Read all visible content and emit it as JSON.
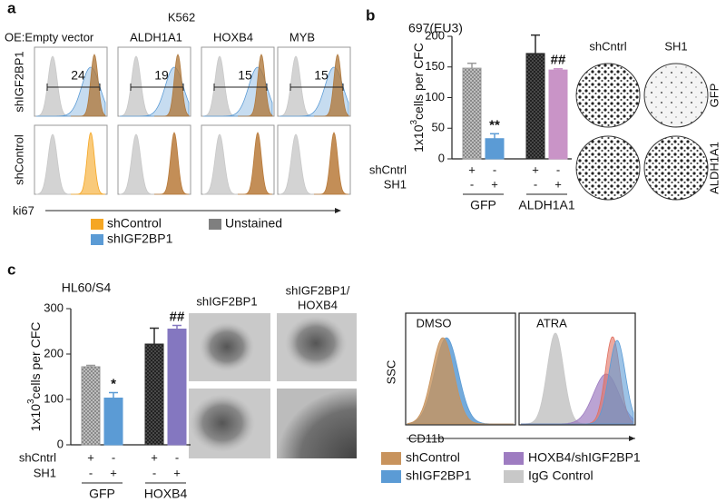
{
  "panel_a": {
    "label": "a",
    "cell_line": "K562",
    "columns": [
      "OE:Empty vector",
      "ALDH1A1",
      "HOXB4",
      "MYB"
    ],
    "rows": [
      "shIGF2BP1",
      "shControl"
    ],
    "percentages": [
      24,
      19,
      15,
      15
    ],
    "x_axis": "ki67",
    "legend": [
      {
        "name": "shControl",
        "color": "#f5a623"
      },
      {
        "name": "shIGF2BP1",
        "color": "#5b9bd5"
      },
      {
        "name": "Unstained",
        "color": "#7f7f7f"
      }
    ]
  },
  "chart_data": [
    {
      "type": "bar",
      "panel": "b",
      "title": "697(EU3)",
      "ylabel_parts": [
        "1x10",
        "3",
        "cells per CFC"
      ],
      "categories": [
        null,
        null,
        null,
        null
      ],
      "series": [
        {
          "values": [
            148,
            33,
            172,
            145
          ],
          "errors": [
            8,
            8,
            30,
            2
          ],
          "colors": [
            "#9a9a9a",
            "#5b9bd5",
            "#2b2b2b",
            "#c994c7"
          ],
          "patterned": [
            true,
            false,
            true,
            false
          ]
        }
      ],
      "annotations": [
        null,
        "**",
        null,
        "##"
      ],
      "rows": [
        {
          "name": "shCntrl",
          "marks": [
            "+",
            "-",
            "+",
            "-"
          ]
        },
        {
          "name": "SH1",
          "marks": [
            "-",
            "+",
            "-",
            "+"
          ]
        }
      ],
      "groups": [
        "GFP",
        "ALDH1A1"
      ],
      "ylim": [
        0,
        200
      ],
      "yticks": [
        0,
        50,
        100,
        150,
        200
      ]
    },
    {
      "type": "bar",
      "panel": "c",
      "title": "HL60/S4",
      "ylabel_parts": [
        "1x10",
        "3",
        "cells per CFC"
      ],
      "categories": [
        null,
        null,
        null,
        null
      ],
      "series": [
        {
          "values": [
            172,
            103,
            222,
            255
          ],
          "errors": [
            3,
            12,
            35,
            8
          ],
          "colors": [
            "#9a9a9a",
            "#5b9bd5",
            "#2b2b2b",
            "#8477c0"
          ],
          "patterned": [
            true,
            false,
            true,
            false
          ]
        }
      ],
      "annotations": [
        null,
        "*",
        null,
        "##"
      ],
      "rows": [
        {
          "name": "shCntrl",
          "marks": [
            "+",
            "-",
            "+",
            "-"
          ]
        },
        {
          "name": "SH1",
          "marks": [
            "-",
            "+",
            "-",
            "+"
          ]
        }
      ],
      "groups": [
        "GFP",
        "HOXB4"
      ],
      "ylim": [
        0,
        300
      ],
      "yticks": [
        0,
        100,
        200,
        300
      ]
    }
  ],
  "colonies": {
    "columns": [
      "shCntrl",
      "SH1"
    ],
    "rows": [
      "GFP",
      "ALDH1A1"
    ]
  },
  "images": {
    "left": "shIGF2BP1",
    "right": [
      "shIGF2BP1/",
      "HOXB4"
    ]
  },
  "flow": {
    "conditions": [
      "DMSO",
      "ATRA"
    ],
    "y_axis": "SSC",
    "x_axis": "CD11b",
    "legend": [
      {
        "name": "shControl",
        "color": "#c8935d"
      },
      {
        "name": "shIGF2BP1",
        "color": "#5b9bd5"
      },
      {
        "name": "HOXB4/shIGF2BP1",
        "color": "#9e7cc1"
      },
      {
        "name": "IgG Control",
        "color": "#c8c8c8"
      }
    ]
  }
}
